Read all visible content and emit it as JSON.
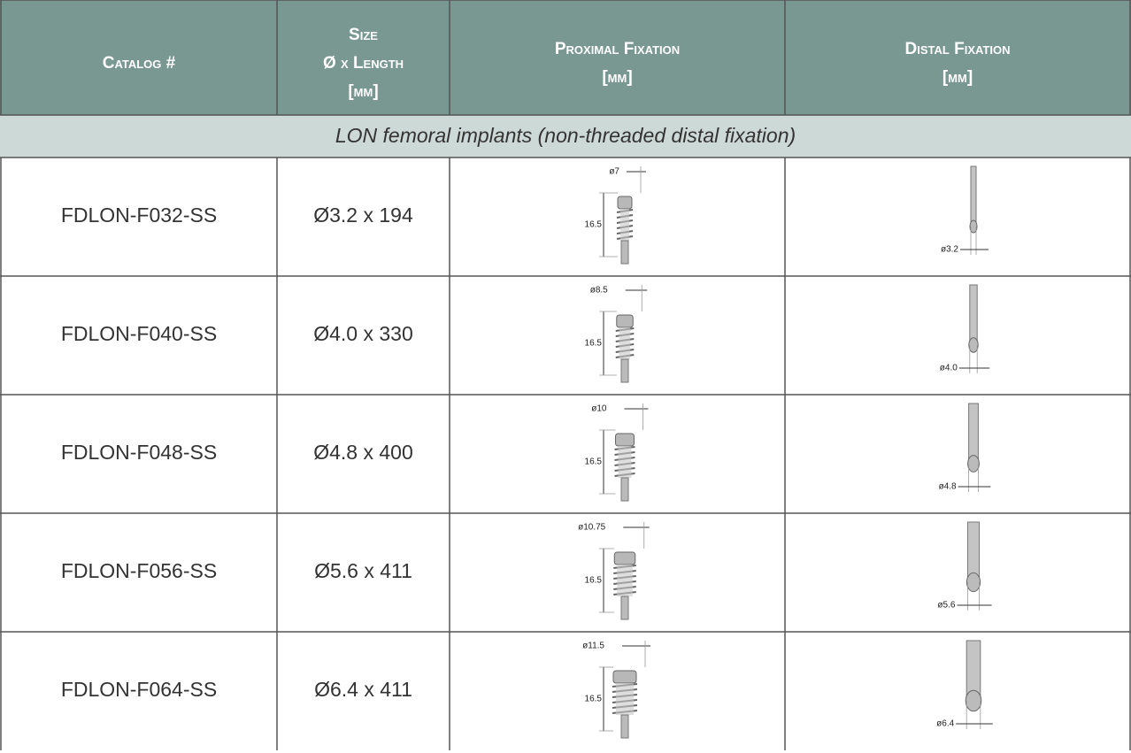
{
  "header": {
    "columns": [
      [
        "Catalog #"
      ],
      [
        "Size",
        "Ø x Length",
        "[mm]"
      ],
      [
        "Proximal Fixation",
        "[mm]"
      ],
      [
        "Distal Fixation",
        "[mm]"
      ]
    ]
  },
  "section": {
    "title": "LON femoral implants (non-threaded distal fixation)"
  },
  "rows": [
    {
      "catalog": "FDLON-F032-SS",
      "size": "Ø3.2 x 194",
      "proximal": {
        "diameter": "ø7",
        "length": "16.5"
      },
      "distal": {
        "diameter": "ø3.2"
      }
    },
    {
      "catalog": "FDLON-F040-SS",
      "size": "Ø4.0 x 330",
      "proximal": {
        "diameter": "ø8.5",
        "length": "16.5"
      },
      "distal": {
        "diameter": "ø4.0"
      }
    },
    {
      "catalog": "FDLON-F048-SS",
      "size": "Ø4.8 x 400",
      "proximal": {
        "diameter": "ø10",
        "length": "16.5"
      },
      "distal": {
        "diameter": "ø4.8"
      }
    },
    {
      "catalog": "FDLON-F056-SS",
      "size": "Ø5.6 x 411",
      "proximal": {
        "diameter": "ø10.75",
        "length": "16.5"
      },
      "distal": {
        "diameter": "ø5.6"
      }
    },
    {
      "catalog": "FDLON-F064-SS",
      "size": "Ø6.4 x 411",
      "proximal": {
        "diameter": "ø11.5",
        "length": "16.5"
      },
      "distal": {
        "diameter": "ø6.4"
      }
    }
  ]
}
